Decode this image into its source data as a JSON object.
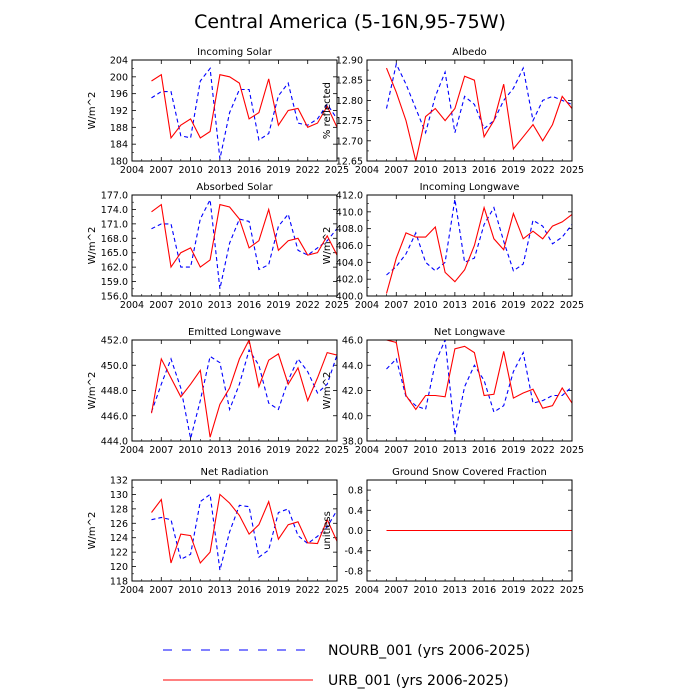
{
  "figure_title": "Central America (5-16N,95-75W)",
  "legend": [
    {
      "name": "NOURB_001 (yrs 2006-2025)",
      "color": "#0000ff",
      "style": "dashed"
    },
    {
      "name": "URB_001 (yrs 2006-2025)",
      "color": "#ff0000",
      "style": "solid"
    }
  ],
  "chart_data": [
    {
      "type": "line",
      "title": "Incoming Solar",
      "ylabel": "W/m^2",
      "xlim": [
        2004,
        2025
      ],
      "ylim": [
        180,
        204
      ],
      "xticks": [
        "2004",
        "2007",
        "2010",
        "2013",
        "2016",
        "2019",
        "2022",
        "2025"
      ],
      "yticks": [
        "180",
        "184",
        "188",
        "192",
        "196",
        "200",
        "204"
      ],
      "x": [
        2006,
        2007,
        2008,
        2009,
        2010,
        2011,
        2012,
        2013,
        2014,
        2015,
        2016,
        2017,
        2018,
        2019,
        2020,
        2021,
        2022,
        2023,
        2024,
        2025
      ],
      "series": [
        {
          "name": "NOURB_001",
          "values": [
            195,
            196.5,
            196.5,
            186,
            185.5,
            199,
            202,
            180.5,
            191.5,
            197,
            197,
            185,
            186.5,
            195.5,
            198.5,
            189,
            188.5,
            190,
            193.5,
            190
          ]
        },
        {
          "name": "URB_001",
          "values": [
            199,
            200.5,
            185.5,
            188.5,
            190,
            185.5,
            187,
            200.5,
            200,
            198.5,
            190,
            191.5,
            199.5,
            188.5,
            192,
            192.5,
            188,
            189,
            193,
            188
          ]
        }
      ]
    },
    {
      "type": "line",
      "title": "Albedo",
      "ylabel": "% reflected",
      "xlim": [
        2004,
        2025
      ],
      "ylim": [
        12.65,
        12.9
      ],
      "xticks": [
        "2004",
        "2007",
        "2010",
        "2013",
        "2016",
        "2019",
        "2022",
        "2025"
      ],
      "yticks": [
        "12.65",
        "12.70",
        "12.75",
        "12.80",
        "12.85",
        "12.90"
      ],
      "x": [
        2006,
        2007,
        2008,
        2009,
        2010,
        2011,
        2012,
        2013,
        2014,
        2015,
        2016,
        2017,
        2018,
        2019,
        2020,
        2021,
        2022,
        2023,
        2024,
        2025
      ],
      "series": [
        {
          "name": "NOURB_001",
          "values": [
            12.78,
            12.89,
            12.84,
            12.78,
            12.72,
            12.81,
            12.87,
            12.72,
            12.81,
            12.79,
            12.73,
            12.75,
            12.8,
            12.83,
            12.88,
            12.75,
            12.8,
            12.81,
            12.8,
            12.79
          ]
        },
        {
          "name": "URB_001",
          "values": [
            12.88,
            12.82,
            12.75,
            12.65,
            12.76,
            12.78,
            12.75,
            12.78,
            12.86,
            12.85,
            12.71,
            12.75,
            12.84,
            12.68,
            12.71,
            12.74,
            12.7,
            12.74,
            12.81,
            12.78
          ]
        }
      ]
    },
    {
      "type": "line",
      "title": "Absorbed Solar",
      "ylabel": "W/m^2",
      "xlim": [
        2004,
        2025
      ],
      "ylim": [
        156,
        177
      ],
      "xticks": [
        "2004",
        "2007",
        "2010",
        "2013",
        "2016",
        "2019",
        "2022",
        "2025"
      ],
      "yticks": [
        "156.0",
        "159.0",
        "162.0",
        "165.0",
        "168.0",
        "171.0",
        "174.0",
        "177.0"
      ],
      "x": [
        2006,
        2007,
        2008,
        2009,
        2010,
        2011,
        2012,
        2013,
        2014,
        2015,
        2016,
        2017,
        2018,
        2019,
        2020,
        2021,
        2022,
        2023,
        2024,
        2025
      ],
      "series": [
        {
          "name": "NOURB_001",
          "values": [
            170,
            171,
            171,
            162,
            162,
            172,
            176,
            157.5,
            167,
            172,
            171.5,
            161.5,
            162.5,
            170.5,
            173,
            165.5,
            164.5,
            166,
            167.5,
            170
          ]
        },
        {
          "name": "URB_001",
          "values": [
            173.5,
            175,
            162,
            165,
            166,
            162,
            163.5,
            175,
            174.5,
            172,
            166,
            167.5,
            174,
            165.5,
            167.5,
            168,
            164.5,
            165,
            168.5,
            164.5
          ]
        }
      ]
    },
    {
      "type": "line",
      "title": "Incoming Longwave",
      "ylabel": "W/m^2",
      "xlim": [
        2004,
        2025
      ],
      "ylim": [
        400,
        412
      ],
      "xticks": [
        "2004",
        "2007",
        "2010",
        "2013",
        "2016",
        "2019",
        "2022",
        "2025"
      ],
      "yticks": [
        "400.0",
        "402.0",
        "404.0",
        "406.0",
        "408.0",
        "410.0",
        "412.0"
      ],
      "x": [
        2006,
        2007,
        2008,
        2009,
        2010,
        2011,
        2012,
        2013,
        2014,
        2015,
        2016,
        2017,
        2018,
        2019,
        2020,
        2021,
        2022,
        2023,
        2024,
        2025
      ],
      "series": [
        {
          "name": "NOURB_001",
          "values": [
            402.5,
            403.5,
            405,
            407.5,
            404,
            403,
            404,
            411.5,
            404,
            404.5,
            408.5,
            410.5,
            406.5,
            403,
            403.8,
            409,
            408.3,
            406.2,
            407,
            408.5
          ]
        },
        {
          "name": "URB_001",
          "values": [
            400.3,
            404.5,
            407.5,
            407,
            407,
            408.2,
            402.8,
            401.7,
            403.1,
            406,
            410.5,
            406.8,
            405.5,
            409.8,
            406.8,
            407.7,
            406.8,
            408.3,
            408.8,
            409.7
          ]
        }
      ]
    },
    {
      "type": "line",
      "title": "Emitted Longwave",
      "ylabel": "W/m^2",
      "xlim": [
        2004,
        2025
      ],
      "ylim": [
        444,
        452
      ],
      "xticks": [
        "2004",
        "2007",
        "2010",
        "2013",
        "2016",
        "2019",
        "2022",
        "2025"
      ],
      "yticks": [
        "444.0",
        "446.0",
        "448.0",
        "450.0",
        "452.0"
      ],
      "x": [
        2006,
        2007,
        2008,
        2009,
        2010,
        2011,
        2012,
        2013,
        2014,
        2015,
        2016,
        2017,
        2018,
        2019,
        2020,
        2021,
        2022,
        2023,
        2024,
        2025
      ],
      "series": [
        {
          "name": "NOURB_001",
          "values": [
            446.3,
            448.5,
            450.5,
            448.2,
            444.2,
            447.2,
            450.7,
            450.2,
            446.5,
            448.5,
            451.2,
            450,
            447,
            446.5,
            448.8,
            450.5,
            449.5,
            447.8,
            448.5,
            450.8
          ]
        },
        {
          "name": "URB_001",
          "values": [
            446.2,
            450.5,
            449,
            447.5,
            448.5,
            449.6,
            444.3,
            446.9,
            448.2,
            450.5,
            452,
            448.3,
            450.4,
            450.9,
            448.5,
            449.8,
            447.2,
            449,
            451,
            450.8
          ]
        }
      ]
    },
    {
      "type": "line",
      "title": "Net Longwave",
      "ylabel": "W/m^2",
      "xlim": [
        2004,
        2025
      ],
      "ylim": [
        38,
        46
      ],
      "xticks": [
        "2004",
        "2007",
        "2010",
        "2013",
        "2016",
        "2019",
        "2022",
        "2025"
      ],
      "yticks": [
        "38.0",
        "40.0",
        "42.0",
        "44.0",
        "46.0"
      ],
      "x": [
        2006,
        2007,
        2008,
        2009,
        2010,
        2011,
        2012,
        2013,
        2014,
        2015,
        2016,
        2017,
        2018,
        2019,
        2020,
        2021,
        2022,
        2023,
        2024,
        2025
      ],
      "series": [
        {
          "name": "NOURB_001",
          "values": [
            43.7,
            44.5,
            41.5,
            40.8,
            40.5,
            44.2,
            46,
            38.5,
            42.3,
            44,
            42.8,
            40.3,
            40.8,
            43.5,
            45,
            41,
            41.2,
            41.6,
            41.6,
            42.3
          ]
        },
        {
          "name": "URB_001",
          "values": [
            46,
            45.8,
            41.6,
            40.5,
            41.6,
            41.6,
            41.5,
            45.3,
            45.5,
            45,
            41.6,
            41.7,
            45.1,
            41.4,
            41.8,
            42.1,
            40.6,
            40.8,
            42.2,
            41
          ]
        }
      ]
    },
    {
      "type": "line",
      "title": "Net Radiation",
      "ylabel": "W/m^2",
      "xlim": [
        2004,
        2025
      ],
      "ylim": [
        118,
        132
      ],
      "xticks": [
        "2004",
        "2007",
        "2010",
        "2013",
        "2016",
        "2019",
        "2022",
        "2025"
      ],
      "yticks": [
        "118",
        "120",
        "122",
        "124",
        "126",
        "128",
        "130",
        "132"
      ],
      "x": [
        2006,
        2007,
        2008,
        2009,
        2010,
        2011,
        2012,
        2013,
        2014,
        2015,
        2016,
        2017,
        2018,
        2019,
        2020,
        2021,
        2022,
        2023,
        2024,
        2025
      ],
      "series": [
        {
          "name": "NOURB_001",
          "values": [
            126.5,
            126.8,
            126.5,
            121,
            121.7,
            129,
            130,
            119.5,
            124.8,
            128.5,
            128.3,
            121.3,
            122.3,
            127.5,
            128,
            124.3,
            123.2,
            124.2,
            125.5,
            127.8
          ]
        },
        {
          "name": "URB_001",
          "values": [
            127.5,
            129.3,
            120.5,
            124.5,
            124.3,
            120.5,
            122,
            130,
            128.8,
            127.1,
            124.5,
            125.8,
            129,
            123.8,
            125.8,
            126.2,
            123.3,
            123.2,
            126.5,
            123.5
          ]
        }
      ]
    },
    {
      "type": "line",
      "title": "Ground Snow Covered Fraction",
      "ylabel": "unitless",
      "xlim": [
        2004,
        2025
      ],
      "ylim": [
        -1,
        1
      ],
      "xticks": [
        "2004",
        "2007",
        "2010",
        "2013",
        "2016",
        "2019",
        "2022",
        "2025"
      ],
      "yticks": [
        "-0.8",
        "-0.4",
        "0.0",
        "0.4",
        "0.8"
      ],
      "x": [
        2006,
        2007,
        2008,
        2009,
        2010,
        2011,
        2012,
        2013,
        2014,
        2015,
        2016,
        2017,
        2018,
        2019,
        2020,
        2021,
        2022,
        2023,
        2024,
        2025
      ],
      "series": [
        {
          "name": "NOURB_001",
          "values": [
            0,
            0,
            0,
            0,
            0,
            0,
            0,
            0,
            0,
            0,
            0,
            0,
            0,
            0,
            0,
            0,
            0,
            0,
            0,
            0
          ]
        },
        {
          "name": "URB_001",
          "values": [
            0,
            0,
            0,
            0,
            0,
            0,
            0,
            0,
            0,
            0,
            0,
            0,
            0,
            0,
            0,
            0,
            0,
            0,
            0,
            0
          ]
        }
      ]
    }
  ]
}
